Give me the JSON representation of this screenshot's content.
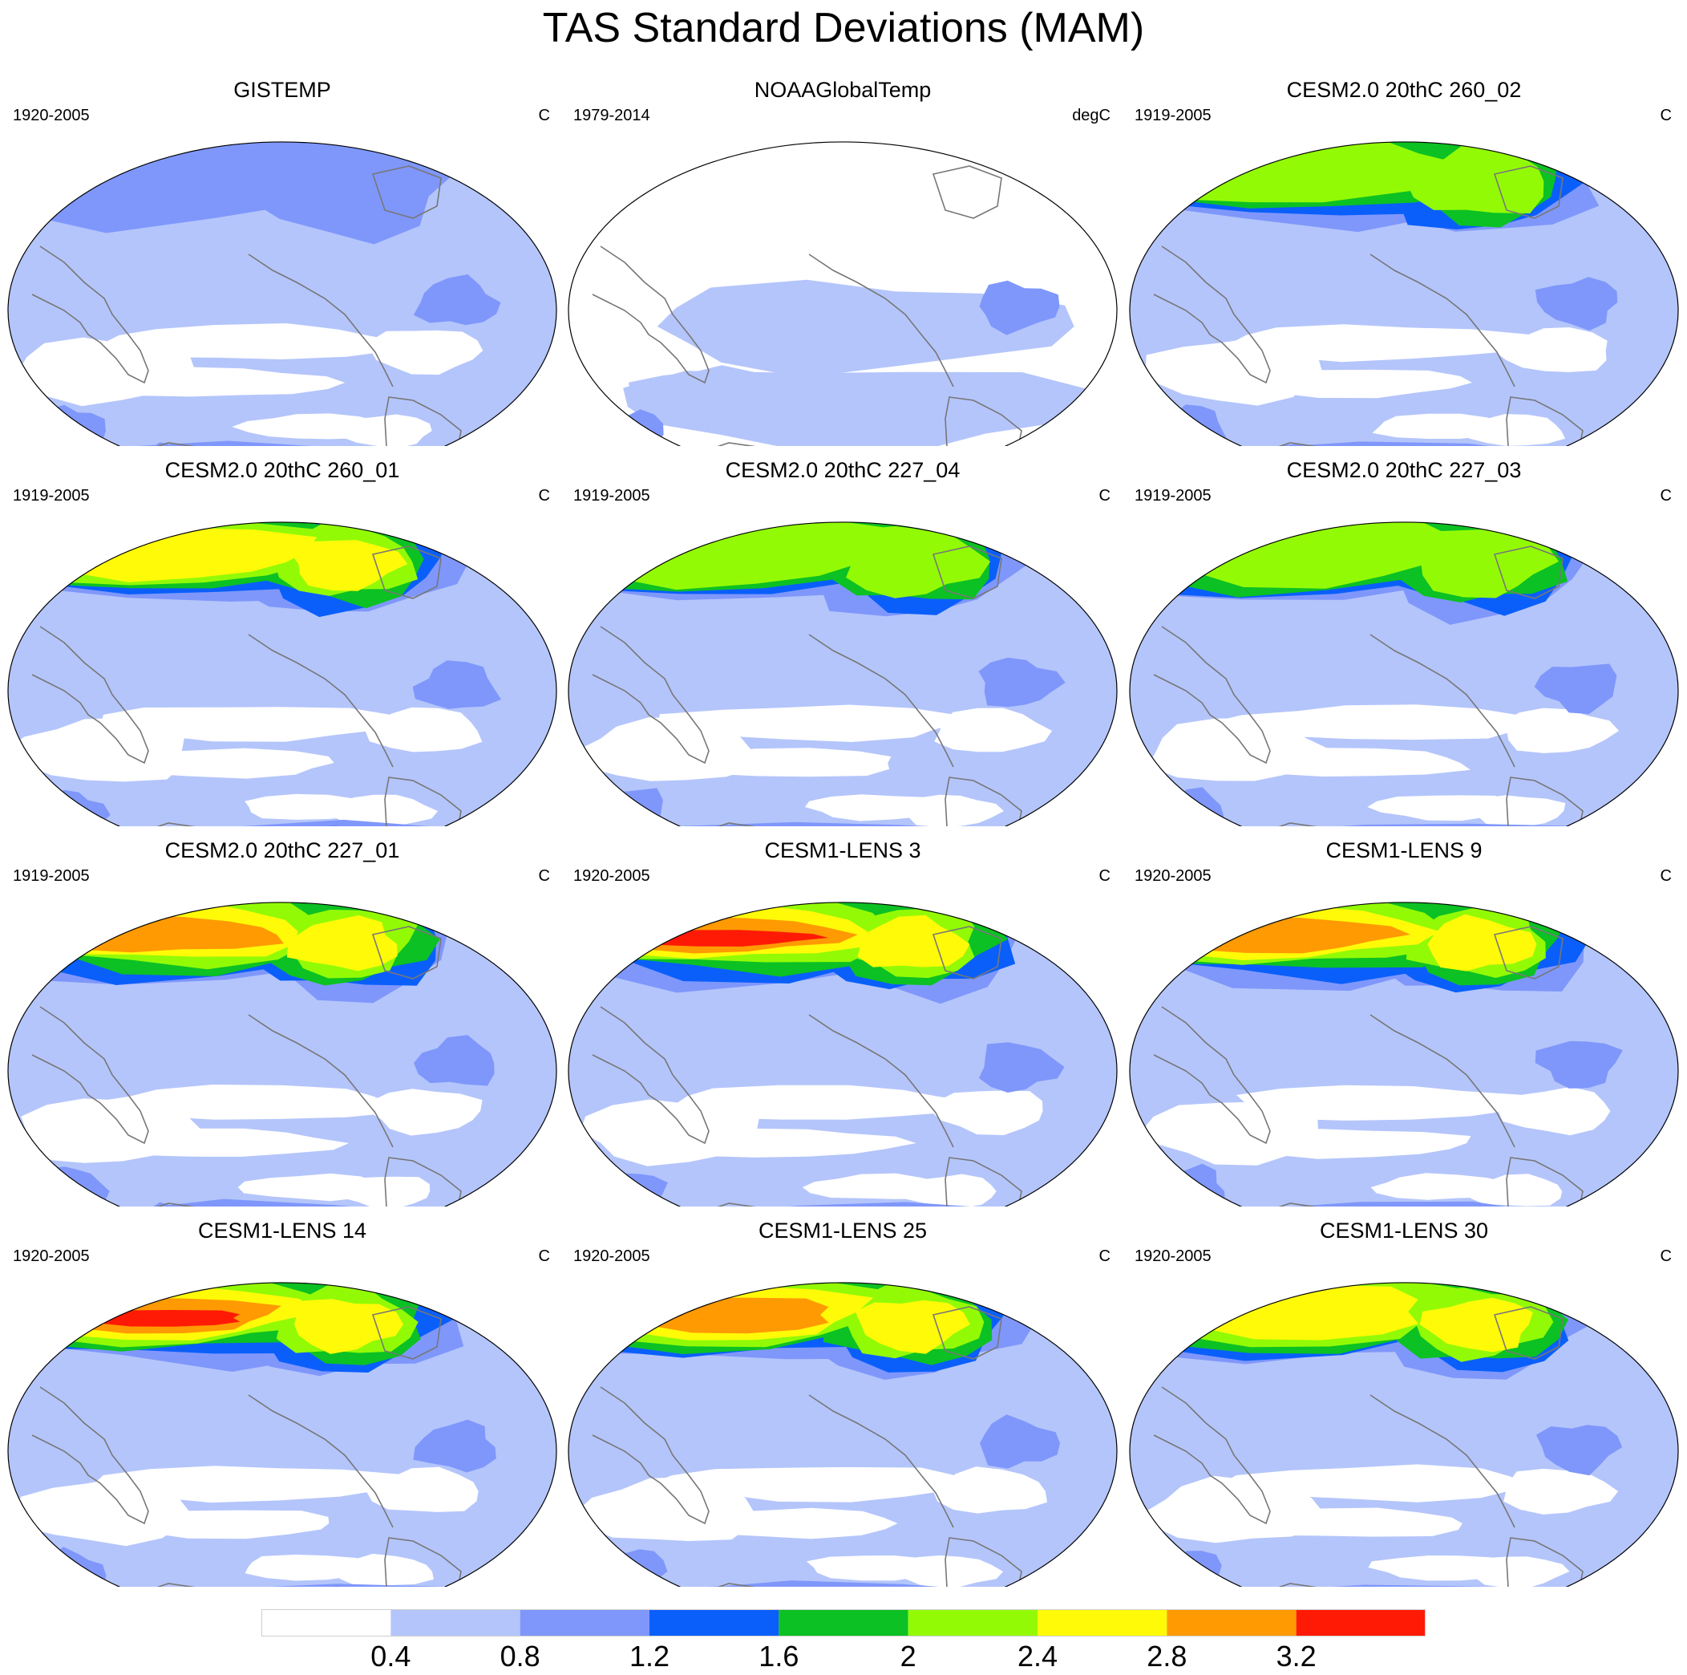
{
  "title": "TAS Standard Deviations (MAM)",
  "palette": [
    "#ffffff",
    "#b4c5fb",
    "#7f97fb",
    "#0a5ffb",
    "#0cc123",
    "#93fa06",
    "#fffa08",
    "#ff9a02",
    "#ff1a06"
  ],
  "colorbar": {
    "levels": [
      "0.4",
      "0.8",
      "1.2",
      "1.6",
      "2",
      "2.4",
      "2.8",
      "3.2"
    ]
  },
  "panels": [
    {
      "title": "GISTEMP",
      "period": "1920-2005",
      "units": "C",
      "style": "obs",
      "arctic": 2,
      "antarctic": 3,
      "variant": 0
    },
    {
      "title": "NOAAGlobalTemp",
      "period": "1979-2014",
      "units": "degC",
      "style": "obs-missing",
      "arctic": 1,
      "antarctic": 0,
      "variant": 1
    },
    {
      "title": "CESM2.0 20thC 260_02",
      "period": "1919-2005",
      "units": "C",
      "style": "model",
      "arctic": 5,
      "antarctic": 6,
      "variant": 2
    },
    {
      "title": "CESM2.0 20thC 260_01",
      "period": "1919-2005",
      "units": "C",
      "style": "model",
      "arctic": 6,
      "antarctic": 7,
      "variant": 3
    },
    {
      "title": "CESM2.0 20thC 227_04",
      "period": "1919-2005",
      "units": "C",
      "style": "model",
      "arctic": 5,
      "antarctic": 6,
      "variant": 4
    },
    {
      "title": "CESM2.0 20thC 227_03",
      "period": "1919-2005",
      "units": "C",
      "style": "model",
      "arctic": 5,
      "antarctic": 7,
      "variant": 5
    },
    {
      "title": "CESM2.0 20thC 227_01",
      "period": "1919-2005",
      "units": "C",
      "style": "model",
      "arctic": 7,
      "antarctic": 7,
      "variant": 6
    },
    {
      "title": "CESM1-LENS 3",
      "period": "1920-2005",
      "units": "C",
      "style": "model",
      "arctic": 8,
      "antarctic": 8,
      "variant": 7
    },
    {
      "title": "CESM1-LENS 9",
      "period": "1920-2005",
      "units": "C",
      "style": "model",
      "arctic": 7,
      "antarctic": 8,
      "variant": 8
    },
    {
      "title": "CESM1-LENS 14",
      "period": "1920-2005",
      "units": "C",
      "style": "model",
      "arctic": 8,
      "antarctic": 8,
      "variant": 9
    },
    {
      "title": "CESM1-LENS 25",
      "period": "1920-2005",
      "units": "C",
      "style": "model",
      "arctic": 7,
      "antarctic": 8,
      "variant": 10
    },
    {
      "title": "CESM1-LENS 30",
      "period": "1920-2005",
      "units": "C",
      "style": "model",
      "arctic": 6,
      "antarctic": 8,
      "variant": 11
    }
  ]
}
